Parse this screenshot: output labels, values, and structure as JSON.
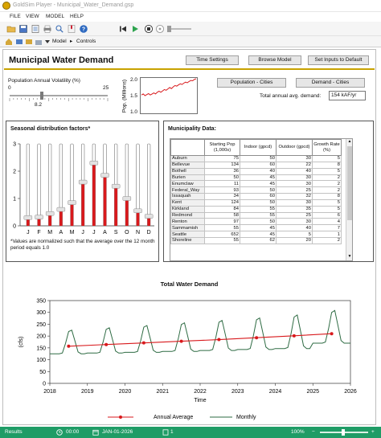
{
  "window": {
    "title": "GoldSim Player - Municipal_Water_Demand.gsp"
  },
  "menu": [
    "FILE",
    "VIEW",
    "MODEL",
    "HELP"
  ],
  "breadcrumb": {
    "root": "Model",
    "current": "Controls"
  },
  "header": {
    "title": "Municipal Water Demand",
    "buttons": [
      "Time Settings",
      "Browse Model",
      "Set Inputs to Default"
    ]
  },
  "volatility": {
    "label": "Population Annual Volatility (%)",
    "min": "0",
    "max": "25",
    "value": "8.2",
    "fraction": 0.328
  },
  "pop_chart": {
    "ylabel": "Pop. (Millions)",
    "ticks": [
      "2.0",
      "1.5",
      "1.0"
    ],
    "ylim": [
      1.0,
      2.0
    ],
    "series": [
      1.52,
      1.55,
      1.5,
      1.53,
      1.56,
      1.52,
      1.55,
      1.58,
      1.55,
      1.6,
      1.63,
      1.6,
      1.64,
      1.68,
      1.66,
      1.7,
      1.74,
      1.71,
      1.76,
      1.8,
      1.78,
      1.82,
      1.85,
      1.83,
      1.87,
      1.9,
      1.88,
      1.92,
      1.95,
      1.94,
      1.98,
      2.0
    ]
  },
  "buttons_right": [
    "Population - Cities",
    "Demand - Cities"
  ],
  "total_demand": {
    "label": "Total annual avg. demand:",
    "value": "154 kAF/yr"
  },
  "seasonal": {
    "title": "Seasonal distribution factors*",
    "months": [
      "J",
      "F",
      "M",
      "A",
      "M",
      "J",
      "J",
      "A",
      "S",
      "O",
      "N",
      "D"
    ],
    "values": [
      0.3,
      0.32,
      0.45,
      0.6,
      0.85,
      1.6,
      2.3,
      1.85,
      1.45,
      1.0,
      0.55,
      0.35
    ],
    "yticks": [
      "3",
      "2",
      "1",
      "0"
    ],
    "ylim": [
      0,
      3
    ],
    "note": "*Values are normalized such that the average over the 12 month period equals 1.0"
  },
  "municipality": {
    "title": "Municipality Data:",
    "columns": [
      "",
      "Starting Pop (1,000s)",
      "Indoor (gpcd)",
      "Outdoor (gpcd)",
      "Growth Rate (%)"
    ],
    "rows": [
      [
        "Auburn",
        "75",
        "50",
        "30",
        "5"
      ],
      [
        "Bellevue",
        "134",
        "60",
        "22",
        "8"
      ],
      [
        "Bothell",
        "36",
        "40",
        "40",
        "5"
      ],
      [
        "Burien",
        "50",
        "45",
        "30",
        "2"
      ],
      [
        "Enumclaw",
        "11",
        "45",
        "30",
        "2"
      ],
      [
        "Federal_Way",
        "93",
        "50",
        "25",
        "2"
      ],
      [
        "Issaquah",
        "34",
        "60",
        "32",
        "8"
      ],
      [
        "Kent",
        "124",
        "50",
        "30",
        "5"
      ],
      [
        "Kirkland",
        "84",
        "55",
        "35",
        "5"
      ],
      [
        "Redmond",
        "58",
        "55",
        "25",
        "6"
      ],
      [
        "Renton",
        "97",
        "50",
        "30",
        "4"
      ],
      [
        "Sammamish",
        "55",
        "45",
        "40",
        "7"
      ],
      [
        "Seattle",
        "652",
        "45",
        "5",
        "1"
      ],
      [
        "Shoreline",
        "55",
        "62",
        "20",
        "2"
      ]
    ]
  },
  "demand_chart": {
    "title": "Total Water Demand",
    "ylabel": "cfs",
    "xlabel": "Time",
    "yticks": [
      "350",
      "300",
      "250",
      "200",
      "150",
      "100",
      "50",
      "0"
    ],
    "xticks": [
      "2018",
      "2019",
      "2020",
      "2021",
      "2022",
      "2023",
      "2024",
      "2025",
      "2026"
    ],
    "ylim": [
      0,
      350
    ],
    "xlim": [
      2018,
      2026
    ],
    "legend": [
      "Annual Average",
      "Monthly"
    ],
    "colors": {
      "annual": "#d8191c",
      "monthly": "#2e6b43"
    },
    "annual_x": [
      2018.5,
      2019.5,
      2020.5,
      2021.5,
      2022.5,
      2023.5,
      2024.5,
      2025.5
    ],
    "annual_y": [
      157,
      164,
      171,
      178,
      185,
      193,
      201,
      210
    ],
    "monthly_peaks": [
      230,
      240,
      250,
      262,
      272,
      283,
      296,
      315
    ],
    "monthly_troughs": [
      125,
      128,
      131,
      135,
      139,
      143,
      147,
      170
    ]
  },
  "status": {
    "mode": "Results",
    "clock": "00:00",
    "date": "JAN-01-2026",
    "page": "1",
    "zoom": "100%"
  }
}
